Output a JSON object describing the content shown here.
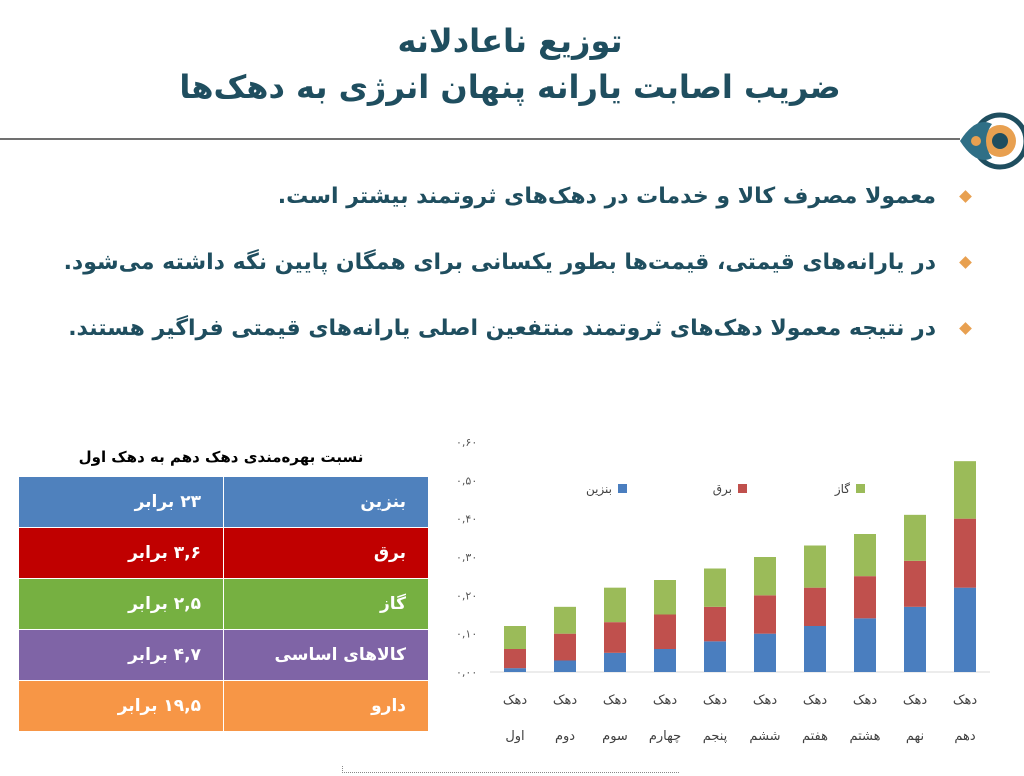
{
  "slide": {
    "title_line1": "توزیع ناعادلانه",
    "title_line2": "ضریب اصابت یارانه پنهان انرژی به دهک‌ها"
  },
  "bullets": [
    "معمولا مصرف کالا و خدمات در دهک‌های ثروتمند بیشتر است.",
    "در یارانه‌های قیمتی، قیمت‌ها بطور یکسانی برای همگان پایین نگه داشته می‌شود.",
    "در نتیجه معمولا دهک‌های ثروتمند منتفعین اصلی یارانه‌های قیمتی فراگیر هستند."
  ],
  "table": {
    "title": "نسبت بهره‌مندی دهک دهم به دهک اول",
    "rows": [
      {
        "item": "بنزین",
        "ratio": "۲۳ برابر",
        "color": "#4f81bd"
      },
      {
        "item": "برق",
        "ratio": "۳,۶ برابر",
        "color": "#c00000"
      },
      {
        "item": "گاز",
        "ratio": "۲,۵ برابر",
        "color": "#76b041"
      },
      {
        "item": "کالاهای اساسی",
        "ratio": "۴,۷ برابر",
        "color": "#7f64a6"
      },
      {
        "item": "دارو",
        "ratio": "۱۹,۵ برابر",
        "color": "#f79646"
      }
    ]
  },
  "chart_data": {
    "type": "bar",
    "stacked": true,
    "categories": [
      [
        "دهک",
        "اول"
      ],
      [
        "دهک",
        "دوم"
      ],
      [
        "دهک",
        "سوم"
      ],
      [
        "دهک",
        "چهارم"
      ],
      [
        "دهک",
        "پنجم"
      ],
      [
        "دهک",
        "ششم"
      ],
      [
        "دهک",
        "هفتم"
      ],
      [
        "دهک",
        "هشتم"
      ],
      [
        "دهک",
        "نهم"
      ],
      [
        "دهک",
        "دهم"
      ]
    ],
    "series": [
      {
        "name": "بنزین",
        "color": "#4a7ebf",
        "values": [
          0.01,
          0.03,
          0.05,
          0.06,
          0.08,
          0.1,
          0.12,
          0.14,
          0.17,
          0.22
        ]
      },
      {
        "name": "برق",
        "color": "#c0504d",
        "values": [
          0.05,
          0.07,
          0.08,
          0.09,
          0.09,
          0.1,
          0.1,
          0.11,
          0.12,
          0.18
        ]
      },
      {
        "name": "گاز",
        "color": "#9bbb59",
        "values": [
          0.06,
          0.07,
          0.09,
          0.09,
          0.1,
          0.1,
          0.11,
          0.11,
          0.12,
          0.15
        ]
      }
    ],
    "yticks": [
      "۰,۰۰",
      "۰,۱۰",
      "۰,۲۰",
      "۰,۳۰",
      "۰,۴۰",
      "۰,۵۰",
      "۰,۶۰"
    ],
    "ylim": [
      0,
      0.6
    ],
    "legend_position": "top"
  }
}
